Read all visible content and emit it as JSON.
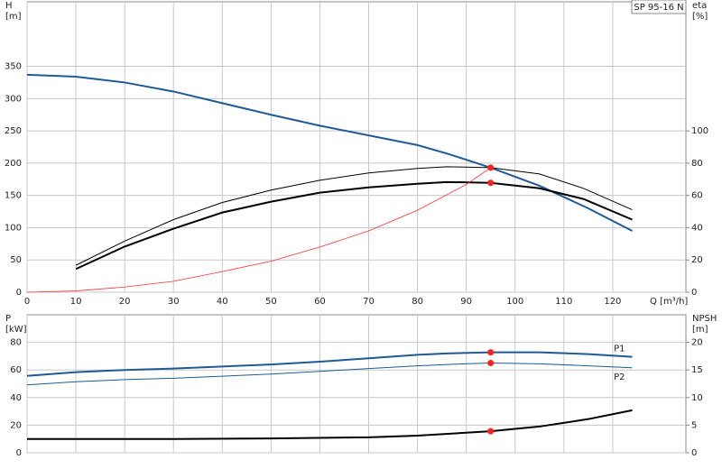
{
  "chart_data": [
    {
      "type": "line",
      "title": "SP 95-16 N",
      "xlabel": "Q [m³/h]",
      "ylabel_lines": [
        "H",
        "[m]"
      ],
      "y2label_lines": [
        "eta",
        "[%]"
      ],
      "xlim": [
        0,
        135
      ],
      "xticks": [
        0,
        10,
        20,
        30,
        40,
        50,
        60,
        70,
        80,
        90,
        100,
        110,
        120
      ],
      "ylim": [
        0,
        450
      ],
      "yticks": [
        0,
        50,
        100,
        150,
        200,
        250,
        300,
        350
      ],
      "y2lim": [
        0,
        180
      ],
      "y2ticks": [
        0,
        20,
        40,
        60,
        80,
        100
      ],
      "grid": true,
      "series": [
        {
          "color": "#1f5a96",
          "width": 2,
          "axis": "y",
          "x": [
            0,
            10,
            20,
            30,
            40,
            50,
            60,
            70,
            80,
            86,
            95,
            105,
            115,
            124
          ],
          "values": [
            337,
            334,
            325,
            311,
            293,
            275,
            258,
            243,
            228,
            215,
            193,
            165,
            130,
            95
          ]
        },
        {
          "color": "#000000",
          "width": 1,
          "axis": "y2",
          "x": [
            10,
            20,
            30,
            40,
            50,
            60,
            70,
            80,
            86,
            95,
            105,
            114,
            124
          ],
          "values": [
            16.7,
            31.7,
            45,
            55.6,
            63.3,
            69.4,
            73.9,
            76.7,
            77.8,
            77.2,
            73.3,
            64.4,
            51.1
          ]
        },
        {
          "color": "#000000",
          "width": 2,
          "axis": "y2",
          "x": [
            10,
            20,
            30,
            40,
            50,
            60,
            70,
            80,
            86,
            95,
            105,
            114,
            124
          ],
          "values": [
            14.4,
            28.3,
            39.4,
            49.4,
            56.1,
            61.7,
            65,
            67.2,
            68.3,
            67.8,
            64.4,
            57.8,
            45
          ]
        },
        {
          "color": "#ff3030",
          "width": 0.8,
          "axis": "y",
          "x": [
            0,
            10,
            20,
            30,
            40,
            50,
            60,
            70,
            80,
            90,
            95
          ],
          "values": [
            0,
            2,
            8,
            17,
            32,
            48,
            70,
            95,
            127,
            167,
            193
          ]
        }
      ],
      "points": [
        {
          "axis": "y",
          "x": 95,
          "y": 193,
          "color": "#ff2020"
        },
        {
          "axis": "y2",
          "x": 95,
          "y": 67.8,
          "color": "#ff2020"
        }
      ]
    },
    {
      "type": "line",
      "ylabel_lines": [
        "P",
        "[kW]"
      ],
      "y2label_lines": [
        "NPSH",
        "[m]"
      ],
      "xlim": [
        0,
        135
      ],
      "xticks": [
        0,
        10,
        20,
        30,
        40,
        50,
        60,
        70,
        80,
        90,
        100,
        110,
        120
      ],
      "ylim": [
        0,
        100
      ],
      "yticks": [
        0,
        20,
        40,
        60,
        80
      ],
      "y2lim": [
        0,
        25
      ],
      "y2ticks": [
        0,
        5,
        10,
        15,
        20
      ],
      "grid": true,
      "series": [
        {
          "name": "P1",
          "color": "#1f5a96",
          "width": 2,
          "axis": "y",
          "x": [
            0,
            10,
            20,
            30,
            40,
            50,
            60,
            70,
            80,
            86,
            95,
            105,
            115,
            124
          ],
          "values": [
            55.7,
            58.4,
            60,
            61,
            62.5,
            64,
            66,
            68.5,
            71,
            72,
            72.8,
            72.8,
            71.5,
            69.5
          ]
        },
        {
          "name": "P2",
          "color": "#1f5a96",
          "width": 1,
          "axis": "y",
          "x": [
            0,
            10,
            20,
            30,
            40,
            50,
            60,
            70,
            80,
            86,
            95,
            105,
            115,
            124
          ],
          "values": [
            49.2,
            51.5,
            53,
            54,
            55.5,
            57,
            59,
            61,
            63,
            64,
            65,
            64.5,
            63,
            61.6
          ]
        },
        {
          "color": "#000000",
          "width": 2,
          "axis": "y2",
          "x": [
            0,
            10,
            30,
            50,
            70,
            80,
            95,
            105,
            115,
            124
          ],
          "values": [
            2.5,
            2.5,
            2.5,
            2.6,
            2.8,
            3.1,
            3.9,
            4.75,
            6.1,
            7.7
          ]
        }
      ],
      "points": [
        {
          "axis": "y",
          "x": 95,
          "y": 72.8,
          "color": "#ff2020"
        },
        {
          "axis": "y",
          "x": 95,
          "y": 65,
          "color": "#ff2020"
        },
        {
          "axis": "y2",
          "x": 95,
          "y": 3.9,
          "color": "#ff2020"
        }
      ]
    }
  ]
}
